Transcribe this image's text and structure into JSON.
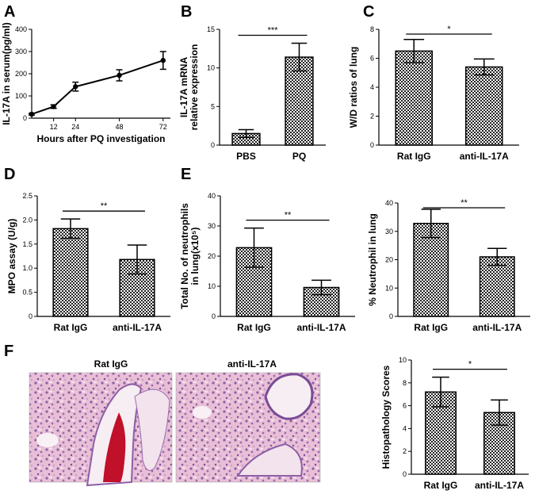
{
  "chart_data": [
    {
      "id": "A",
      "type": "line",
      "panel_label": "A",
      "xlabel": "Hours after PQ investigation",
      "ylabel": "IL-17A in serum(pg/ml)",
      "x": [
        0,
        12,
        24,
        48,
        72
      ],
      "xticks": [
        "12",
        "24",
        "48",
        "72"
      ],
      "xtick_values": [
        12,
        24,
        48,
        72
      ],
      "yticks": [
        "0",
        "100",
        "200",
        "300",
        "400"
      ],
      "ylim": [
        0,
        400
      ],
      "xlim": [
        0,
        76
      ],
      "series": [
        {
          "values": [
            18,
            52,
            142,
            193,
            260
          ],
          "errors": [
            4,
            8,
            20,
            25,
            40
          ]
        }
      ]
    },
    {
      "id": "B",
      "type": "bar",
      "panel_label": "B",
      "categories": [
        "PBS",
        "PQ"
      ],
      "ylabel": "IL-17A mRNA\nrelative expression",
      "values": [
        1.5,
        11.4
      ],
      "errors": [
        0.5,
        1.8
      ],
      "ylim": [
        0,
        15
      ],
      "yticks": [
        "0",
        "5",
        "10",
        "15"
      ],
      "significance": "***"
    },
    {
      "id": "C",
      "type": "bar",
      "panel_label": "C",
      "categories": [
        "Rat IgG",
        "anti-IL-17A"
      ],
      "ylabel": "W/D ratios of lung",
      "values": [
        6.5,
        5.4
      ],
      "errors": [
        0.8,
        0.55
      ],
      "ylim": [
        0,
        8
      ],
      "yticks": [
        "0",
        "2",
        "4",
        "6",
        "8"
      ],
      "significance": "*"
    },
    {
      "id": "D",
      "type": "bar",
      "panel_label": "D",
      "categories": [
        "Rat IgG",
        "anti-IL-17A"
      ],
      "ylabel": "MPO  assay (U/g)",
      "values": [
        1.82,
        1.18
      ],
      "errors": [
        0.2,
        0.3
      ],
      "ylim": [
        0,
        2.5
      ],
      "yticks": [
        "0",
        "0.5",
        "1.0",
        "1.5",
        "2.0",
        "2.5"
      ],
      "significance": "**"
    },
    {
      "id": "E1",
      "type": "bar",
      "panel_label": "E",
      "categories": [
        "Rat IgG",
        "anti-IL-17A"
      ],
      "ylabel": "Total No. of neutrophils\nin lung(x10⁵)",
      "values": [
        22.8,
        9.6
      ],
      "errors": [
        6.5,
        2.4
      ],
      "ylim": [
        0,
        40
      ],
      "yticks": [
        "0",
        "10",
        "20",
        "30",
        "40"
      ],
      "significance": "**"
    },
    {
      "id": "E2",
      "type": "bar",
      "panel_label": "",
      "categories": [
        "Rat IgG",
        "anti-IL-17A"
      ],
      "ylabel": "% Neutrophil in lung",
      "values": [
        32.8,
        21.0
      ],
      "errors": [
        5.0,
        3.0
      ],
      "ylim": [
        0,
        40
      ],
      "yticks": [
        "0",
        "10",
        "20",
        "30",
        "40"
      ],
      "significance": "**"
    },
    {
      "id": "F",
      "type": "bar",
      "panel_label": "",
      "categories": [
        "Rat IgG",
        "anti-IL-17A"
      ],
      "ylabel": "Histopathology Scores",
      "values": [
        7.2,
        5.4
      ],
      "errors": [
        1.3,
        1.1
      ],
      "ylim": [
        0,
        10
      ],
      "yticks": [
        "0",
        "2",
        "4",
        "6",
        "8",
        "10"
      ],
      "significance": "*"
    }
  ],
  "panel_F": {
    "letter": "F",
    "micrograph_left_label": "Rat IgG",
    "micrograph_right_label": "anti-IL-17A"
  },
  "colors": {
    "bar_pattern": "#222222",
    "tissue_pink": "#e6b8d0",
    "tissue_purple": "#8d5fa6",
    "blood_red": "#c0102a"
  }
}
